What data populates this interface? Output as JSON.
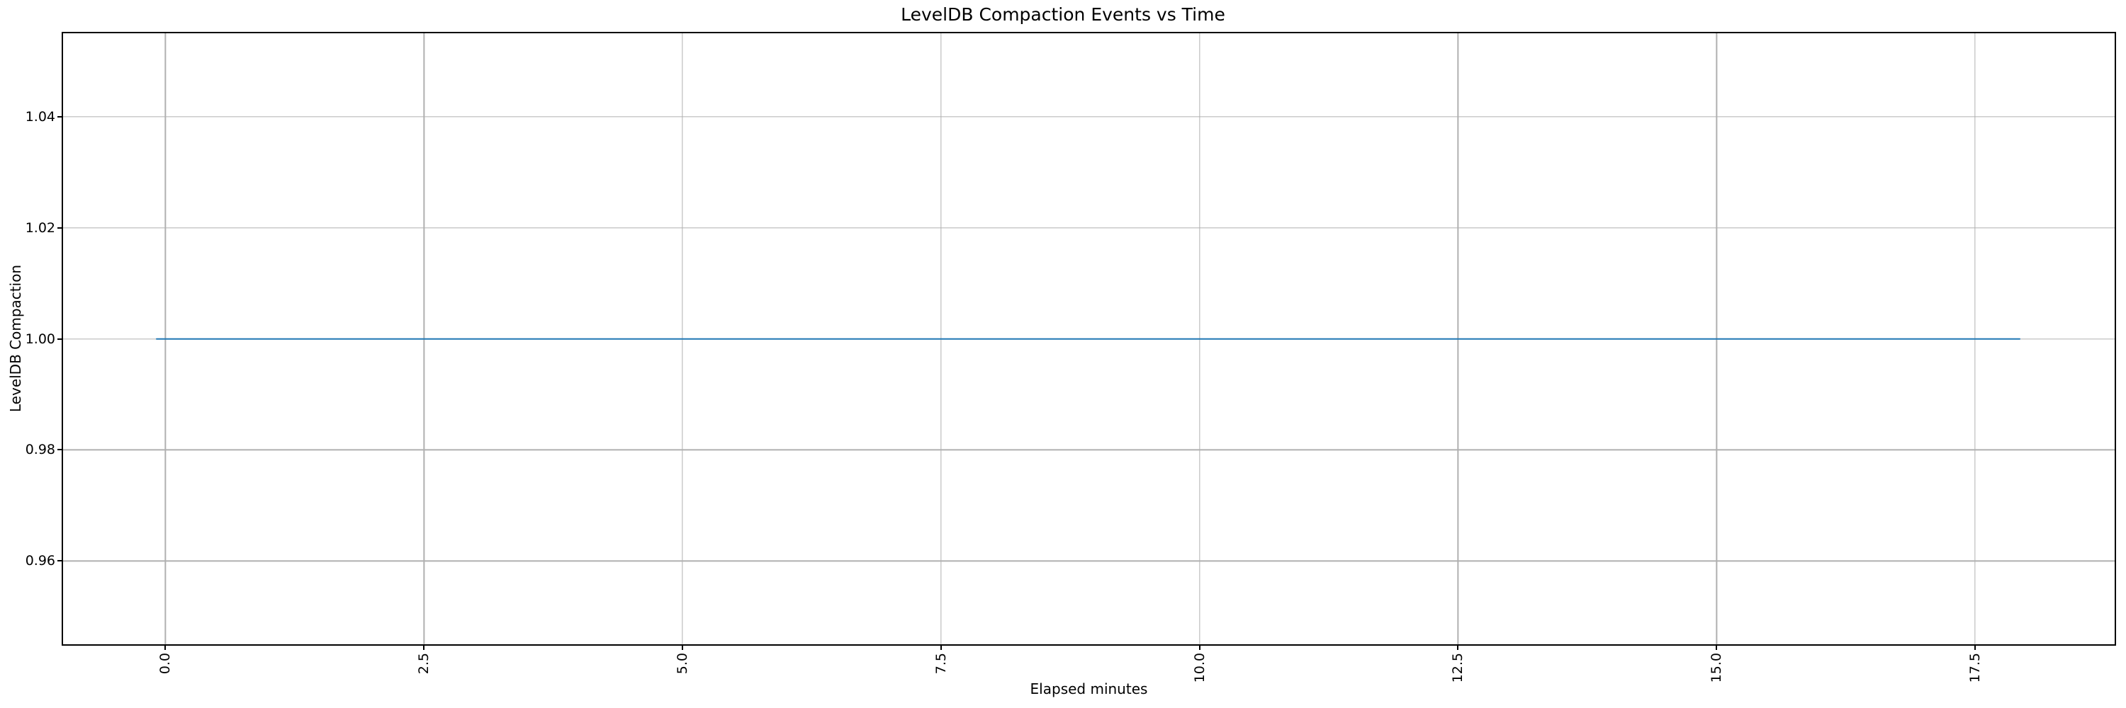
{
  "figure": {
    "background_color": "#ffffff",
    "text_color": "#000000"
  },
  "chart_data": {
    "type": "line",
    "title": "LevelDB Compaction Events vs Time",
    "xlabel": "Elapsed minutes",
    "ylabel": "LevelDB Compaction",
    "grid": true,
    "grid_color": "#b0b0b0",
    "spine_color": "#000000",
    "xlim": [
      -0.99,
      18.85
    ],
    "ylim": [
      0.945,
      1.055
    ],
    "x_ticks": {
      "values": [
        0.0,
        2.5,
        5.0,
        7.5,
        10.0,
        12.5,
        15.0,
        17.5
      ],
      "labels": [
        "0.0",
        "2.5",
        "5.0",
        "7.5",
        "10.0",
        "12.5",
        "15.0",
        "17.5"
      ],
      "rotation_degrees": 90
    },
    "y_ticks": {
      "values": [
        0.96,
        0.98,
        1.0,
        1.02,
        1.04
      ],
      "labels": [
        "0.96",
        "0.98",
        "1.00",
        "1.02",
        "1.04"
      ]
    },
    "series": [
      {
        "color": "#1f77b4",
        "x": [
          -0.09,
          17.94
        ],
        "y": [
          1.0,
          1.0
        ],
        "constant_y": 1.0
      }
    ]
  }
}
